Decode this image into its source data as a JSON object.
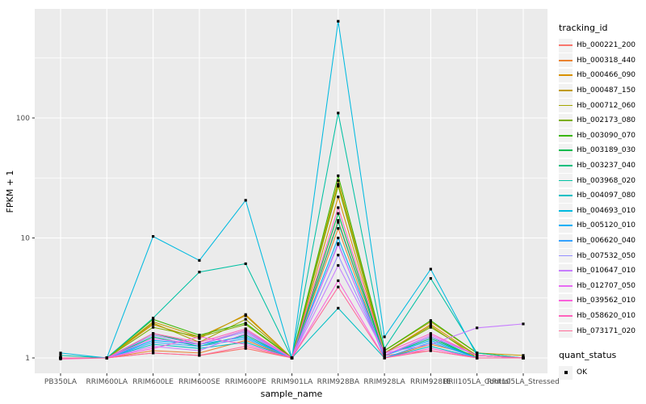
{
  "style": {
    "panel_bg": "#EBEBEB",
    "grid_color": "#FFFFFF",
    "tick_text_color": "#4D4D4D",
    "axis_text_color": "#000000",
    "point_color": "#000000",
    "legend_key_bg": "#F2F2F2"
  },
  "chart_data": {
    "type": "line",
    "title": "",
    "xlabel": "sample_name",
    "ylabel": "FPKM + 1",
    "yscale": "log10",
    "ylim": [
      0.93,
      812
    ],
    "yticks": [
      "1",
      "10",
      "100"
    ],
    "ytick_values": [
      1,
      10,
      100
    ],
    "yminor_values": [
      3.1623,
      31.623,
      316.23
    ],
    "grid": true,
    "legend_position": "right",
    "legend_title": "tracking_id",
    "point_legend": {
      "title": "quant_status",
      "items": [
        {
          "label": "OK"
        }
      ]
    },
    "categories": [
      "PB350LA",
      "RRIM600LA",
      "RRIM600LE",
      "RRIM600SE",
      "RRIM600PE",
      "RRIM901LA",
      "RRIM928BA",
      "RRIM928LA",
      "RRIM928LE",
      "RRII105LA_Control",
      "RRII105LA_Stressed"
    ],
    "series": [
      {
        "name": "Hb_000221_200",
        "color": "#F8766D",
        "values": [
          1,
          1,
          1.1,
          1.05,
          1.2,
          1,
          14,
          1.05,
          1.15,
          1,
          1
        ]
      },
      {
        "name": "Hb_000318_440",
        "color": "#EA8331",
        "values": [
          1,
          1,
          1.15,
          1.1,
          1.4,
          1,
          12,
          1,
          1.3,
          1.05,
          1
        ]
      },
      {
        "name": "Hb_000466_090",
        "color": "#D89000",
        "values": [
          1,
          1,
          1.9,
          1.45,
          2.3,
          1,
          22,
          1.1,
          1.9,
          1.05,
          1
        ]
      },
      {
        "name": "Hb_000487_150",
        "color": "#C09B00",
        "values": [
          1,
          1,
          2,
          1.5,
          2.25,
          1,
          30,
          1.15,
          2,
          1.1,
          1.05
        ]
      },
      {
        "name": "Hb_000712_060",
        "color": "#A3A500",
        "values": [
          1,
          1,
          1.95,
          1.35,
          2.1,
          1,
          28,
          1.1,
          1.85,
          1,
          1
        ]
      },
      {
        "name": "Hb_002173_080",
        "color": "#7CAE00",
        "values": [
          1,
          1,
          1.8,
          1.5,
          1.9,
          1,
          27,
          1.1,
          1.8,
          1.05,
          1
        ]
      },
      {
        "name": "Hb_003090_070",
        "color": "#39B600",
        "values": [
          1,
          1,
          2.1,
          1.55,
          1.95,
          1,
          33,
          1.15,
          2.05,
          1.1,
          1
        ]
      },
      {
        "name": "Hb_003189_030",
        "color": "#00BB4E",
        "values": [
          1,
          1,
          1.6,
          1.3,
          1.7,
          1,
          16,
          1.05,
          1.5,
          1,
          1
        ]
      },
      {
        "name": "Hb_003237_040",
        "color": "#00BF7D",
        "values": [
          1,
          1,
          1.5,
          1.25,
          1.55,
          1,
          13.5,
          1.05,
          1.45,
          1,
          1
        ]
      },
      {
        "name": "Hb_003968_020",
        "color": "#00C1A3",
        "values": [
          1.05,
          1,
          2.15,
          5.2,
          6.1,
          1,
          110,
          1.2,
          4.6,
          1.1,
          1
        ]
      },
      {
        "name": "Hb_004097_080",
        "color": "#00BFC4",
        "values": [
          1,
          1,
          1.3,
          1.2,
          1.35,
          1,
          2.6,
          1,
          1.25,
          1,
          1
        ]
      },
      {
        "name": "Hb_004693_010",
        "color": "#00BAE0",
        "values": [
          1.1,
          1,
          10.3,
          6.5,
          20.6,
          1,
          640,
          1.5,
          5.5,
          1.05,
          1
        ]
      },
      {
        "name": "Hb_005120_010",
        "color": "#00B0F6",
        "values": [
          1,
          1,
          1.4,
          1.3,
          1.5,
          1,
          10,
          1.05,
          1.4,
          1,
          1
        ]
      },
      {
        "name": "Hb_006620_040",
        "color": "#35A2FF",
        "values": [
          1,
          1,
          1.35,
          1.25,
          1.45,
          1,
          9,
          1,
          1.35,
          1,
          1
        ]
      },
      {
        "name": "Hb_007532_050",
        "color": "#9590FF",
        "values": [
          1,
          1,
          1.55,
          1.3,
          1.65,
          1,
          7.2,
          1.05,
          1.5,
          1.05,
          1
        ]
      },
      {
        "name": "Hb_010647_010",
        "color": "#C77CFF",
        "values": [
          1,
          1,
          1.25,
          1.15,
          1.6,
          1,
          5.9,
          1.1,
          1.3,
          1.78,
          1.92
        ]
      },
      {
        "name": "Hb_012707_050",
        "color": "#E76BF3",
        "values": [
          1,
          1,
          1.45,
          1.3,
          1.7,
          1,
          8.8,
          1.05,
          1.55,
          1.05,
          1
        ]
      },
      {
        "name": "Hb_039562_010",
        "color": "#FA62DB",
        "values": [
          1,
          1,
          1.2,
          1.5,
          1.3,
          1,
          4.4,
          1,
          1.2,
          1,
          1
        ]
      },
      {
        "name": "Hb_058620_010",
        "color": "#FF62BC",
        "values": [
          0.98,
          1,
          1.6,
          1.35,
          1.75,
          1,
          17.9,
          1.1,
          1.6,
          1.05,
          1
        ]
      },
      {
        "name": "Hb_073171_020",
        "color": "#FF6A98",
        "values": [
          1,
          1,
          1.1,
          1.05,
          1.25,
          1,
          3.9,
          1,
          1.15,
          1,
          1
        ]
      }
    ]
  }
}
